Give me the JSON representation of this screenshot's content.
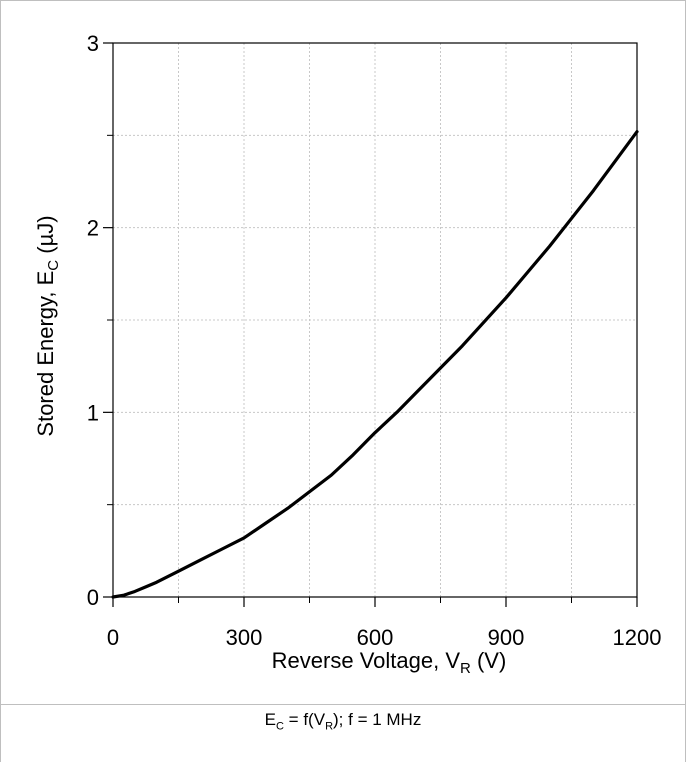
{
  "chart_data": {
    "type": "line",
    "title": "",
    "xlabel": "Reverse Voltage, V",
    "xlabel_sub": "R",
    "xlabel_tail": " (V)",
    "ylabel": "Stored Energy, E",
    "ylabel_sub": "C",
    "ylabel_tail": " (µJ)",
    "xlim": [
      0,
      1200
    ],
    "ylim": [
      0,
      3
    ],
    "xticks": [
      0,
      300,
      600,
      900,
      1200
    ],
    "xtick_labels": [
      "0",
      "300",
      "600",
      "900",
      "1200"
    ],
    "yticks": [
      0,
      1,
      2,
      3
    ],
    "ytick_labels": [
      "0",
      "1",
      "2",
      "3"
    ],
    "grid": true,
    "legend": "none",
    "series": [
      {
        "color": "#000000",
        "x": [
          0,
          25,
          50,
          75,
          100,
          150,
          200,
          250,
          300,
          350,
          400,
          450,
          500,
          550,
          600,
          650,
          700,
          750,
          800,
          850,
          900,
          950,
          1000,
          1050,
          1100,
          1150,
          1200
        ],
        "y": [
          0,
          0.01,
          0.03,
          0.055,
          0.08,
          0.14,
          0.2,
          0.26,
          0.32,
          0.4,
          0.48,
          0.57,
          0.66,
          0.77,
          0.89,
          1.0,
          1.12,
          1.24,
          1.36,
          1.49,
          1.62,
          1.76,
          1.9,
          2.05,
          2.2,
          2.36,
          2.52
        ]
      }
    ]
  },
  "caption": {
    "e": "E",
    "e_sub": "C",
    "mid": " = f(V",
    "v_sub": "R",
    "tail": "); f = 1 MHz"
  }
}
